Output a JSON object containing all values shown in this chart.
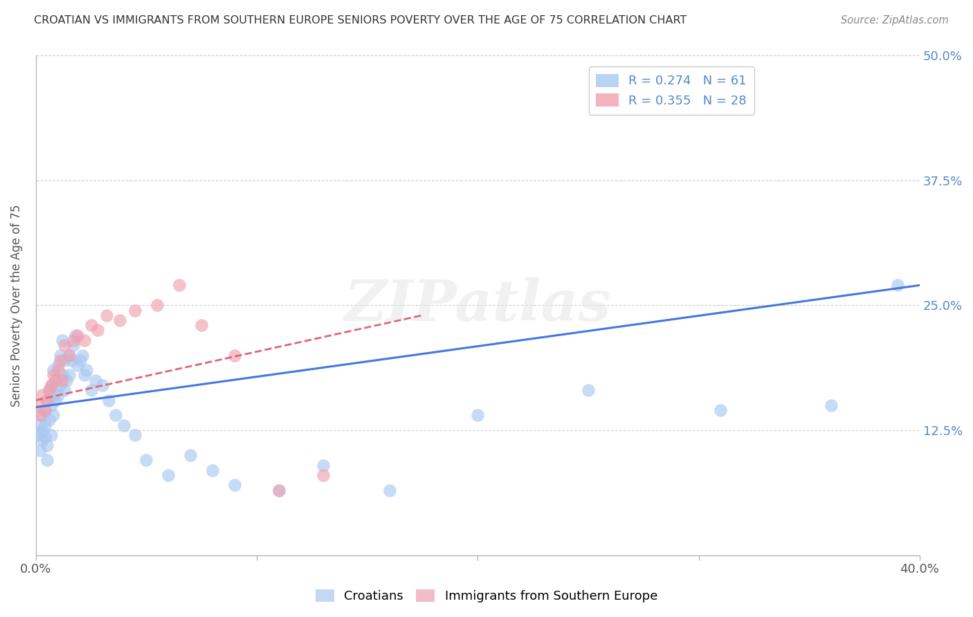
{
  "title": "CROATIAN VS IMMIGRANTS FROM SOUTHERN EUROPE SENIORS POVERTY OVER THE AGE OF 75 CORRELATION CHART",
  "source": "Source: ZipAtlas.com",
  "ylabel": "Seniors Poverty Over the Age of 75",
  "xlim": [
    0.0,
    0.4
  ],
  "ylim": [
    0.0,
    0.5
  ],
  "xticks": [
    0.0,
    0.1,
    0.2,
    0.3,
    0.4
  ],
  "xticklabels": [
    "0.0%",
    "",
    "",
    "",
    "40.0%"
  ],
  "yticks": [
    0.0,
    0.125,
    0.25,
    0.375,
    0.5
  ],
  "yticklabels": [
    "",
    "12.5%",
    "25.0%",
    "37.5%",
    "50.0%"
  ],
  "legend1_label": "R = 0.274   N = 61",
  "legend2_label": "R = 0.355   N = 28",
  "watermark": "ZIPatlas",
  "blue_color": "#a8c8f0",
  "pink_color": "#f0a0b0",
  "blue_line_color": "#4477dd",
  "pink_line_color": "#dd6677",
  "croatians_x": [
    0.001,
    0.002,
    0.002,
    0.003,
    0.003,
    0.003,
    0.004,
    0.004,
    0.004,
    0.005,
    0.005,
    0.005,
    0.006,
    0.006,
    0.007,
    0.007,
    0.007,
    0.008,
    0.008,
    0.008,
    0.009,
    0.009,
    0.01,
    0.01,
    0.011,
    0.011,
    0.012,
    0.012,
    0.013,
    0.013,
    0.014,
    0.015,
    0.015,
    0.016,
    0.017,
    0.018,
    0.019,
    0.02,
    0.021,
    0.022,
    0.023,
    0.025,
    0.027,
    0.03,
    0.033,
    0.036,
    0.04,
    0.045,
    0.05,
    0.06,
    0.07,
    0.08,
    0.09,
    0.11,
    0.13,
    0.16,
    0.2,
    0.25,
    0.31,
    0.36,
    0.39
  ],
  "croatians_y": [
    0.12,
    0.13,
    0.105,
    0.14,
    0.115,
    0.125,
    0.13,
    0.118,
    0.145,
    0.11,
    0.155,
    0.095,
    0.135,
    0.165,
    0.15,
    0.12,
    0.17,
    0.14,
    0.16,
    0.185,
    0.155,
    0.175,
    0.19,
    0.16,
    0.2,
    0.17,
    0.215,
    0.18,
    0.195,
    0.165,
    0.175,
    0.18,
    0.2,
    0.195,
    0.21,
    0.22,
    0.19,
    0.195,
    0.2,
    0.18,
    0.185,
    0.165,
    0.175,
    0.17,
    0.155,
    0.14,
    0.13,
    0.12,
    0.095,
    0.08,
    0.1,
    0.085,
    0.07,
    0.065,
    0.09,
    0.065,
    0.14,
    0.165,
    0.145,
    0.15,
    0.27
  ],
  "immigrants_x": [
    0.001,
    0.002,
    0.003,
    0.004,
    0.005,
    0.006,
    0.007,
    0.008,
    0.009,
    0.01,
    0.011,
    0.012,
    0.013,
    0.015,
    0.017,
    0.019,
    0.022,
    0.025,
    0.028,
    0.032,
    0.038,
    0.045,
    0.055,
    0.065,
    0.075,
    0.09,
    0.11,
    0.13
  ],
  "immigrants_y": [
    0.15,
    0.14,
    0.16,
    0.145,
    0.155,
    0.165,
    0.17,
    0.18,
    0.175,
    0.185,
    0.195,
    0.175,
    0.21,
    0.2,
    0.215,
    0.22,
    0.215,
    0.23,
    0.225,
    0.24,
    0.235,
    0.245,
    0.25,
    0.27,
    0.23,
    0.2,
    0.065,
    0.08
  ],
  "blue_trend_x": [
    0.0,
    0.4
  ],
  "blue_trend_y": [
    0.148,
    0.27
  ],
  "pink_trend_x": [
    0.0,
    0.175
  ],
  "pink_trend_y": [
    0.155,
    0.24
  ],
  "grid_color": "#cccccc",
  "tick_color": "#aaaaaa",
  "right_label_color": "#5588cc",
  "title_color": "#333333",
  "source_color": "#888888"
}
